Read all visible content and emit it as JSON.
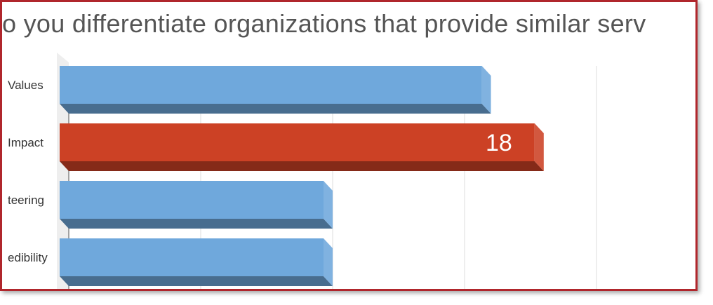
{
  "title": "o you differentiate organizations that provide similar serv",
  "colors": {
    "default_bar": "#6fa8dc",
    "highlight_bar": "#cc4125",
    "frame_border": "#b0262c",
    "gridline": "#dcdcdc"
  },
  "chart_data": {
    "type": "bar",
    "orientation": "horizontal",
    "style": "3d",
    "title": "o you differentiate organizations that provide similar serv",
    "categories": [
      "Values",
      "Impact",
      "teering",
      "edibility"
    ],
    "values": [
      16,
      18,
      10,
      10
    ],
    "highlighted_index": 1,
    "data_labels": [
      "",
      "18",
      "",
      ""
    ],
    "xlim": [
      0,
      24
    ],
    "grid": true,
    "legend": "none"
  }
}
